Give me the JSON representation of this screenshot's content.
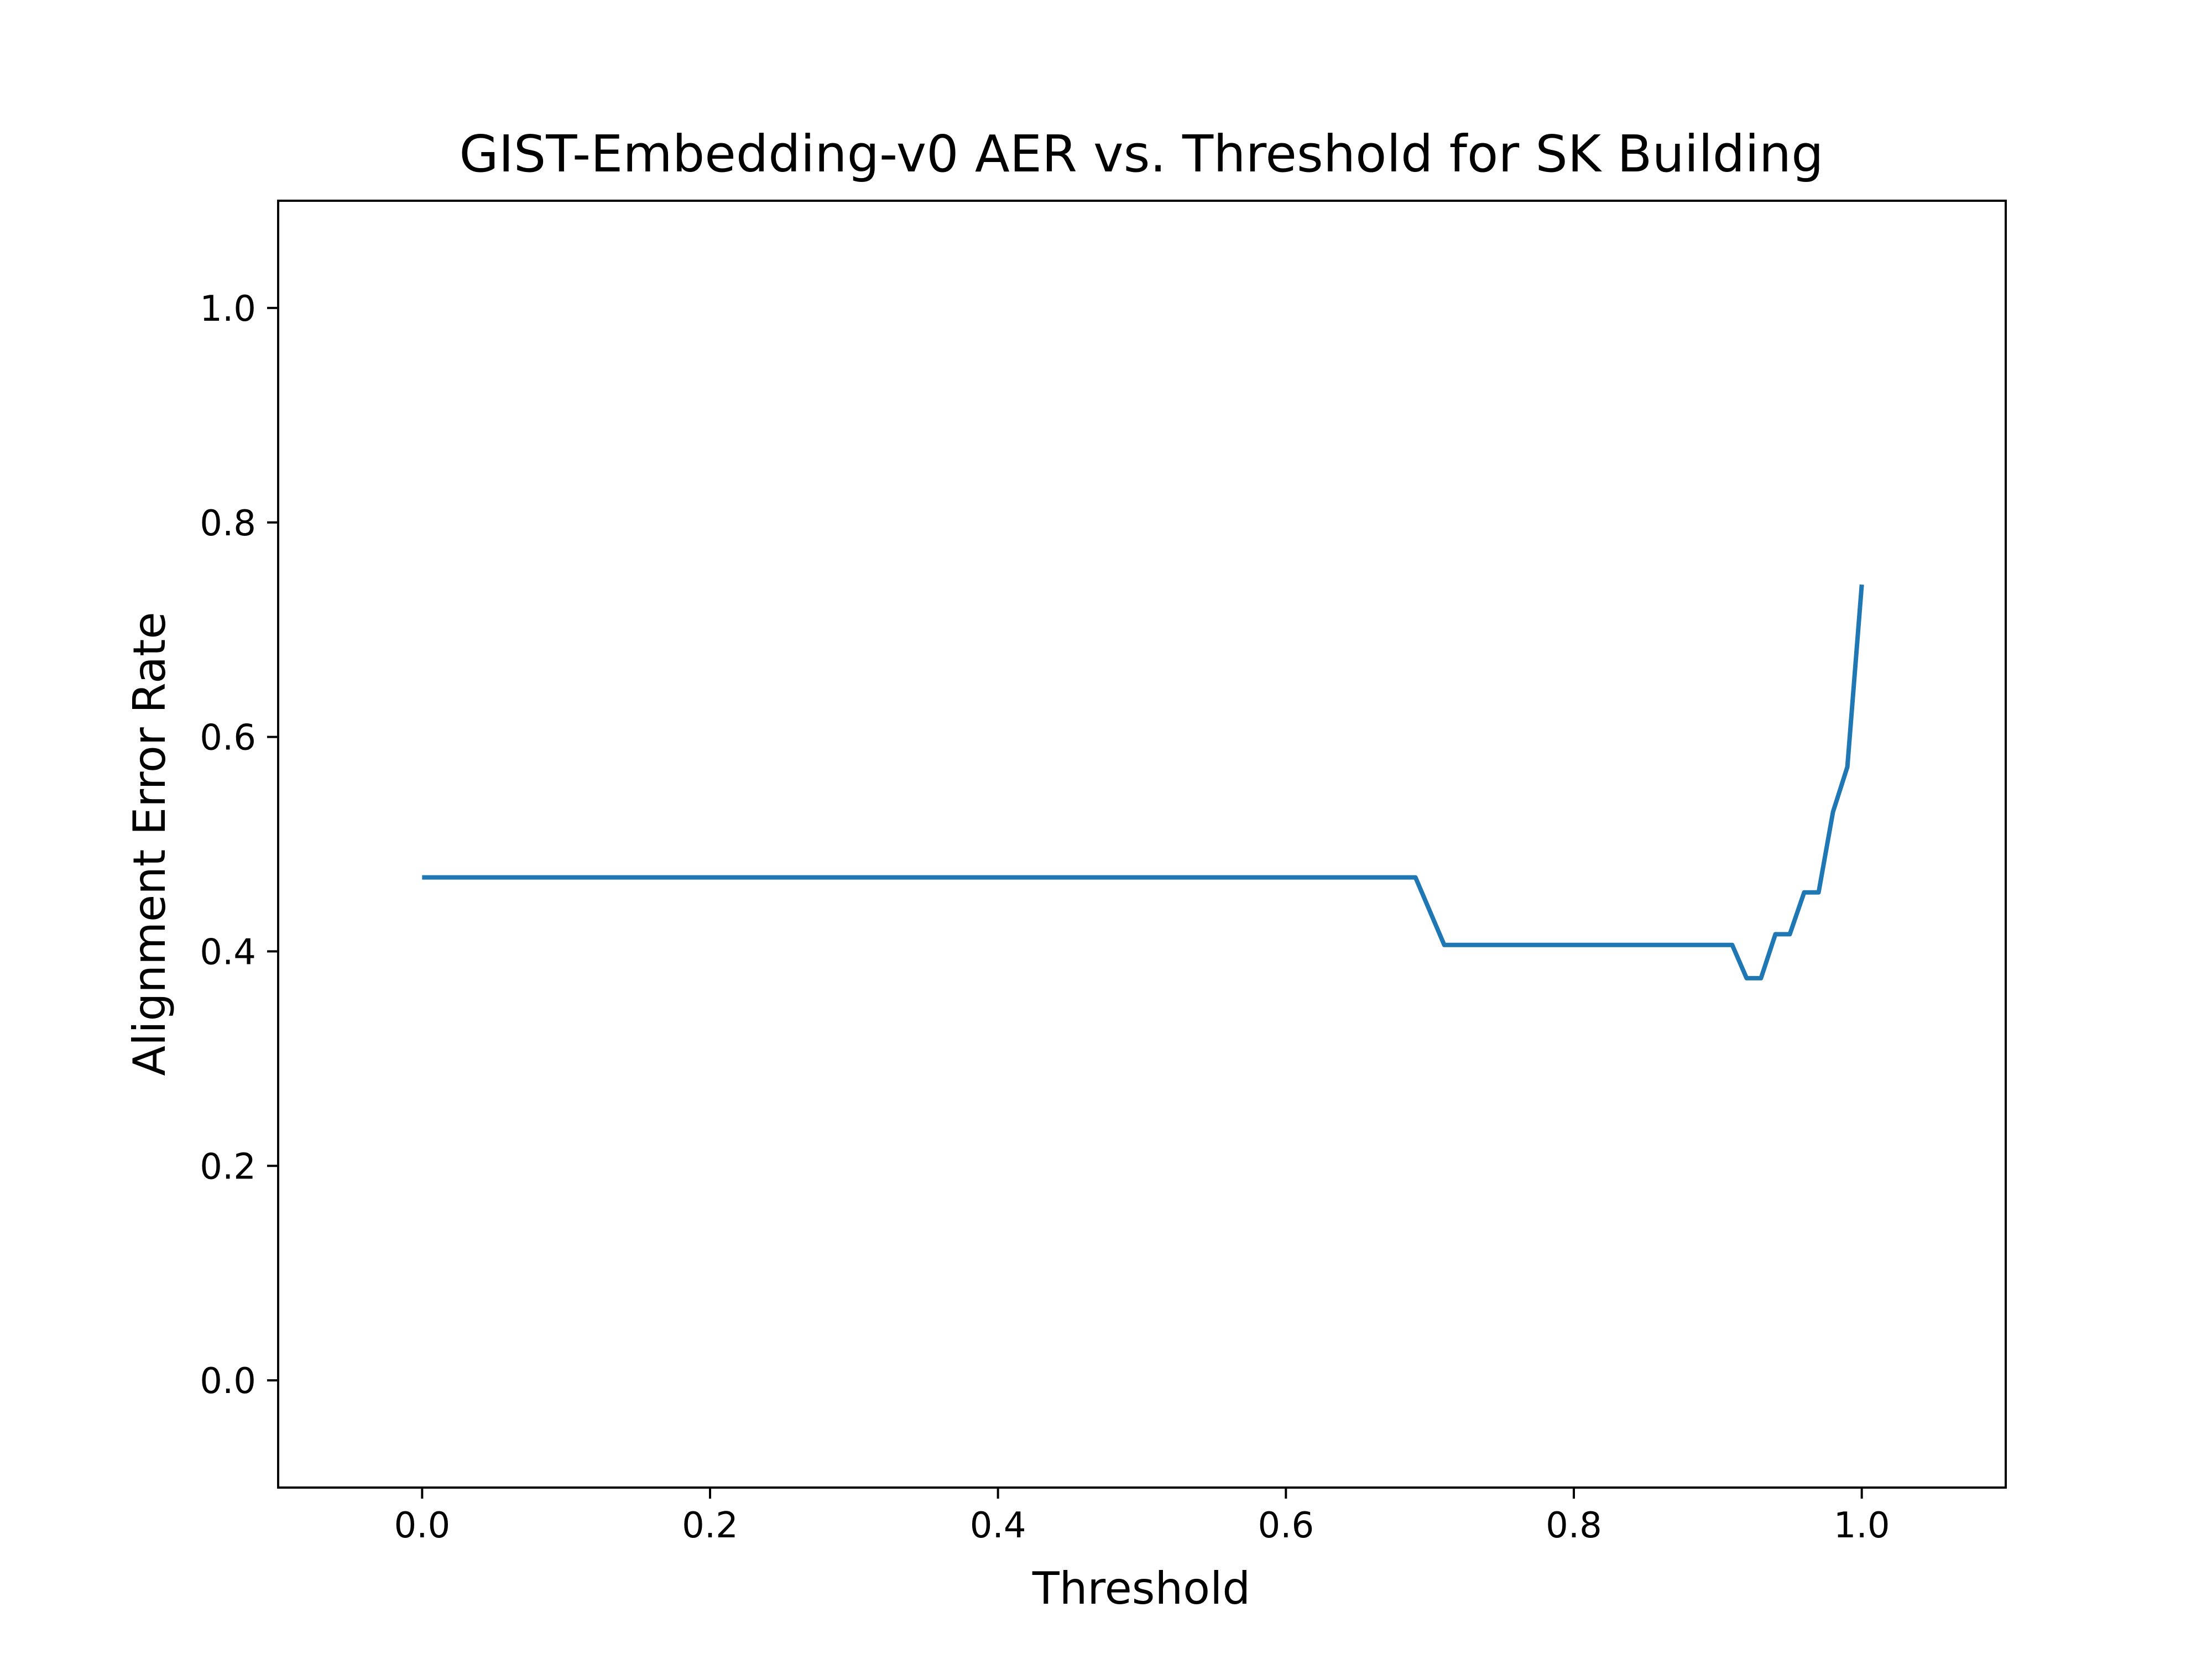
{
  "chart_data": {
    "type": "line",
    "title": "GIST-Embedding-v0 AER vs. Threshold for SK Building",
    "xlabel": "Threshold",
    "ylabel": "Alignment Error Rate",
    "xlim": [
      -0.1,
      1.1
    ],
    "ylim": [
      -0.1,
      1.1
    ],
    "grid": false,
    "x_ticks": [
      0.0,
      0.2,
      0.4,
      0.6,
      0.8,
      1.0
    ],
    "x_tick_labels": [
      "0.0",
      "0.2",
      "0.4",
      "0.6",
      "0.8",
      "1.0"
    ],
    "y_ticks": [
      0.0,
      0.2,
      0.4,
      0.6,
      0.8,
      1.0
    ],
    "y_tick_labels": [
      "0.0",
      "0.2",
      "0.4",
      "0.6",
      "0.8",
      "1.0"
    ],
    "line_color": "#1f77b4",
    "series": [
      {
        "x": [
          0.0,
          0.69,
          0.71,
          0.91,
          0.92,
          0.93,
          0.94,
          0.95,
          0.96,
          0.97,
          0.98,
          0.99,
          1.0
        ],
        "y": [
          0.469,
          0.469,
          0.406,
          0.406,
          0.375,
          0.375,
          0.416,
          0.416,
          0.455,
          0.455,
          0.53,
          0.572,
          0.742
        ]
      }
    ]
  }
}
